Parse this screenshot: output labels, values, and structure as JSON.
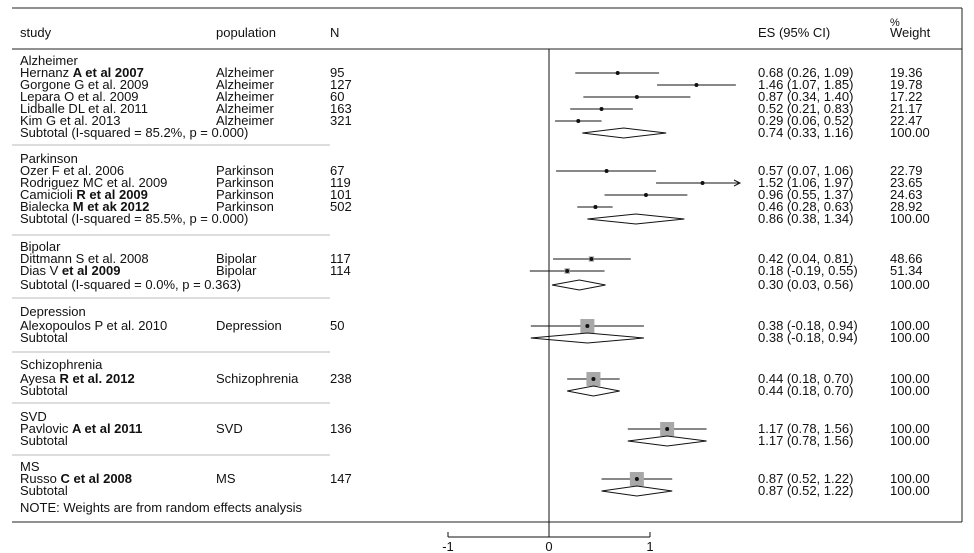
{
  "chart_data": {
    "type": "forest",
    "headers": {
      "study": "study",
      "population": "population",
      "n": "N",
      "es": "ES (95% CI)",
      "weight_line1": "%",
      "weight_line2": "Weight"
    },
    "x_ticks": [
      -1,
      0,
      1
    ],
    "x_tick_labels": [
      "-1",
      "0",
      "1"
    ],
    "xlim": [
      -1.5,
      2.2
    ],
    "groups": [
      {
        "name": "Alzheimer",
        "studies": [
          {
            "author": "Hernanz",
            "author_bold": "A et al 2007",
            "population": "Alzheimer",
            "n": "95",
            "es": 0.68,
            "lo": 0.26,
            "hi": 1.09,
            "es_text": "0.68 (0.26, 1.09)",
            "weight": "19.36"
          },
          {
            "author": "Gorgone G et al. 2009",
            "author_bold": "",
            "population": "Alzheimer",
            "n": "127",
            "es": 1.46,
            "lo": 1.07,
            "hi": 1.85,
            "es_text": "1.46 (1.07, 1.85)",
            "weight": "19.78"
          },
          {
            "author": "Lepara O et al. 2009",
            "author_bold": "",
            "population": "Alzheimer",
            "n": "60",
            "es": 0.87,
            "lo": 0.34,
            "hi": 1.4,
            "es_text": "0.87 (0.34, 1.40)",
            "weight": "17.22"
          },
          {
            "author": "Lidballe DL et al. 2011",
            "author_bold": "",
            "population": "Alzheimer",
            "n": "163",
            "es": 0.52,
            "lo": 0.21,
            "hi": 0.83,
            "es_text": "0.52 (0.21, 0.83)",
            "weight": "21.17"
          },
          {
            "author": "Kim G et al. 2013",
            "author_bold": "",
            "population": "Alzheimer",
            "n": "321",
            "es": 0.29,
            "lo": 0.06,
            "hi": 0.52,
            "es_text": "0.29 (0.06, 0.52)",
            "weight": "22.47"
          }
        ],
        "subtotal": {
          "label": "Subtotal  (I-squared = 85.2%, p = 0.000)",
          "es": 0.74,
          "lo": 0.33,
          "hi": 1.16,
          "es_text": "0.74 (0.33, 1.16)",
          "weight": "100.00"
        }
      },
      {
        "name": "Parkinson",
        "studies": [
          {
            "author": "Ozer F et al. 2006",
            "author_bold": "",
            "population": "Parkinson",
            "n": "67",
            "es": 0.57,
            "lo": 0.07,
            "hi": 1.06,
            "es_text": "0.57 (0.07, 1.06)",
            "weight": "22.79"
          },
          {
            "author": "Rodriguez MC et al. 2009",
            "author_bold": "",
            "population": "Parkinson",
            "n": "119",
            "es": 1.52,
            "lo": 1.06,
            "hi": 1.97,
            "es_text": "1.52 (1.06, 1.97)",
            "weight": "23.65"
          },
          {
            "author": "Camicioli",
            "author_bold": "R et al 2009",
            "population": "Parkinson",
            "n": "101",
            "es": 0.96,
            "lo": 0.55,
            "hi": 1.37,
            "es_text": "0.96 (0.55, 1.37)",
            "weight": "24.63"
          },
          {
            "author": "Bialecka",
            "author_bold": "M et ak 2012",
            "population": "Parkinson",
            "n": "502",
            "es": 0.46,
            "lo": 0.28,
            "hi": 0.63,
            "es_text": "0.46 (0.28, 0.63)",
            "weight": "28.92"
          }
        ],
        "subtotal": {
          "label": "Subtotal  (I-squared = 85.5%, p = 0.000)",
          "es": 0.86,
          "lo": 0.38,
          "hi": 1.34,
          "es_text": "0.86 (0.38, 1.34)",
          "weight": "100.00"
        }
      },
      {
        "name": "Bipolar",
        "studies": [
          {
            "author": "Dittmann S et al. 2008",
            "author_bold": "",
            "population": "Bipolar",
            "n": "117",
            "es": 0.42,
            "lo": 0.04,
            "hi": 0.81,
            "es_text": "0.42 (0.04, 0.81)",
            "weight": "48.66"
          },
          {
            "author": "Dias V",
            "author_bold": "et al 2009",
            "population": "Bipolar",
            "n": "114",
            "es": 0.18,
            "lo": -0.19,
            "hi": 0.55,
            "es_text": "0.18 (-0.19, 0.55)",
            "weight": "51.34"
          }
        ],
        "subtotal": {
          "label": "Subtotal  (I-squared = 0.0%, p = 0.363)",
          "es": 0.3,
          "lo": 0.03,
          "hi": 0.56,
          "es_text": "0.30 (0.03, 0.56)",
          "weight": "100.00"
        }
      },
      {
        "name": "Depression",
        "studies": [
          {
            "author": "Alexopoulos P et al. 2010",
            "author_bold": "",
            "population": "Depression",
            "n": "50",
            "es": 0.38,
            "lo": -0.18,
            "hi": 0.94,
            "es_text": "0.38 (-0.18, 0.94)",
            "weight": "100.00"
          }
        ],
        "subtotal": {
          "label": "Subtotal",
          "es": 0.38,
          "lo": -0.18,
          "hi": 0.94,
          "es_text": "0.38 (-0.18, 0.94)",
          "weight": "100.00"
        }
      },
      {
        "name": "Schizophrenia",
        "studies": [
          {
            "author": "Ayesa",
            "author_bold": "R et al. 2012",
            "population": "Schizophrenia",
            "n": "238",
            "es": 0.44,
            "lo": 0.18,
            "hi": 0.7,
            "es_text": "0.44 (0.18, 0.70)",
            "weight": "100.00"
          }
        ],
        "subtotal": {
          "label": "Subtotal",
          "es": 0.44,
          "lo": 0.18,
          "hi": 0.7,
          "es_text": "0.44 (0.18, 0.70)",
          "weight": "100.00"
        }
      },
      {
        "name": "SVD",
        "studies": [
          {
            "author": "Pavlovic",
            "author_bold": "A et al 2011",
            "population": "SVD",
            "n": "136",
            "es": 1.17,
            "lo": 0.78,
            "hi": 1.56,
            "es_text": "1.17 (0.78, 1.56)",
            "weight": "100.00"
          }
        ],
        "subtotal": {
          "label": "Subtotal",
          "es": 1.17,
          "lo": 0.78,
          "hi": 1.56,
          "es_text": "1.17 (0.78, 1.56)",
          "weight": "100.00"
        }
      },
      {
        "name": "MS",
        "studies": [
          {
            "author": "Russo",
            "author_bold": "C et al 2008",
            "population": "MS",
            "n": "147",
            "es": 0.87,
            "lo": 0.52,
            "hi": 1.22,
            "es_text": "0.87 (0.52, 1.22)",
            "weight": "100.00"
          }
        ],
        "subtotal": {
          "label": "Subtotal",
          "es": 0.87,
          "lo": 0.52,
          "hi": 1.22,
          "es_text": "0.87 (0.52, 1.22)",
          "weight": "100.00"
        }
      }
    ],
    "note": "NOTE: Weights are from random effects analysis"
  }
}
